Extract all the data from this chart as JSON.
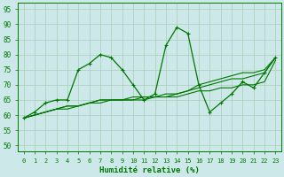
{
  "title": "",
  "xlabel": "Humidité relative (%)",
  "ylabel": "",
  "bg_color": "#cce8e8",
  "grid_color": "#aaccbb",
  "line_color": "#007700",
  "xlim": [
    -0.5,
    23.5
  ],
  "ylim": [
    48,
    97
  ],
  "yticks": [
    50,
    55,
    60,
    65,
    70,
    75,
    80,
    85,
    90,
    95
  ],
  "xticks": [
    0,
    1,
    2,
    3,
    4,
    5,
    6,
    7,
    8,
    9,
    10,
    11,
    12,
    13,
    14,
    15,
    16,
    17,
    18,
    19,
    20,
    21,
    22,
    23
  ],
  "main_series": [
    59,
    61,
    64,
    65,
    65,
    75,
    77,
    80,
    79,
    75,
    70,
    65,
    67,
    83,
    89,
    87,
    70,
    61,
    64,
    67,
    71,
    69,
    74,
    79
  ],
  "trend1": [
    59,
    60,
    61,
    62,
    63,
    63,
    64,
    65,
    65,
    65,
    65,
    66,
    66,
    66,
    67,
    68,
    69,
    70,
    71,
    72,
    72,
    73,
    74,
    79
  ],
  "trend2": [
    59,
    60,
    61,
    62,
    63,
    63,
    64,
    64,
    65,
    65,
    65,
    65,
    66,
    66,
    66,
    67,
    68,
    68,
    69,
    69,
    70,
    70,
    71,
    78
  ],
  "trend3": [
    59,
    60,
    61,
    62,
    62,
    63,
    64,
    65,
    65,
    65,
    66,
    66,
    66,
    67,
    67,
    68,
    70,
    71,
    72,
    73,
    74,
    74,
    75,
    79
  ]
}
